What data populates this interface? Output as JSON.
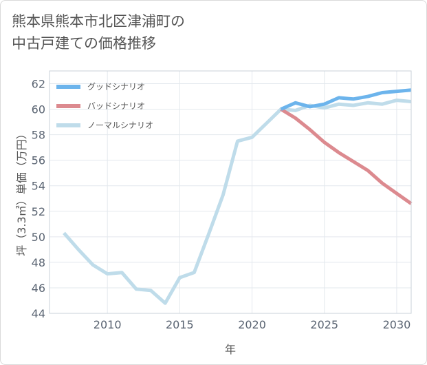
{
  "title": {
    "line1": "熊本県熊本市北区津浦町の",
    "line2": "中古戸建ての価格推移"
  },
  "chart_data": {
    "type": "line",
    "xlabel": "年",
    "ylabel": "坪（3.3㎡）単価（万円）",
    "xlim": [
      2006,
      2031
    ],
    "ylim": [
      44,
      63
    ],
    "xticks": [
      2010,
      2015,
      2020,
      2025,
      2030
    ],
    "yticks": [
      44,
      46,
      48,
      50,
      52,
      54,
      56,
      58,
      60,
      62
    ],
    "legend_position": "top-left",
    "series": [
      {
        "name": "グッドシナリオ",
        "color": "#6cb4ec",
        "x": [
          2022,
          2023,
          2024,
          2025,
          2026,
          2027,
          2028,
          2029,
          2030,
          2031
        ],
        "values": [
          60.0,
          60.5,
          60.2,
          60.4,
          60.9,
          60.8,
          61.0,
          61.3,
          61.4,
          61.5
        ]
      },
      {
        "name": "バッドシナリオ",
        "color": "#dc8a8f",
        "x": [
          2022,
          2023,
          2024,
          2025,
          2026,
          2027,
          2028,
          2029,
          2030,
          2031
        ],
        "values": [
          60.0,
          59.3,
          58.4,
          57.4,
          56.6,
          55.9,
          55.2,
          54.2,
          53.4,
          52.6
        ]
      },
      {
        "name": "ノーマルシナリオ",
        "color": "#bfdcea",
        "x": [
          2007,
          2008,
          2009,
          2010,
          2011,
          2012,
          2013,
          2014,
          2015,
          2016,
          2017,
          2018,
          2019,
          2020,
          2021,
          2022,
          2023,
          2024,
          2025,
          2026,
          2027,
          2028,
          2029,
          2030,
          2031
        ],
        "values": [
          50.3,
          49.0,
          47.8,
          47.1,
          47.2,
          45.9,
          45.8,
          44.8,
          46.8,
          47.2,
          50.2,
          53.3,
          57.5,
          57.8,
          58.9,
          60.0,
          59.9,
          60.3,
          60.1,
          60.4,
          60.3,
          60.5,
          60.4,
          60.7,
          60.6
        ]
      }
    ]
  }
}
